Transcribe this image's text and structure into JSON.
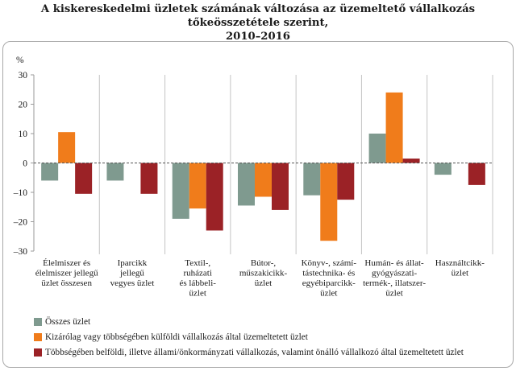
{
  "chart_data": {
    "type": "bar",
    "title": "A kiskereskedelmi üzletek számának változása az üzemeltető vállalkozás tőkeösszetétele szerint, 2010–2016",
    "title_lines": [
      "A kiskereskedelmi üzletek számának változása az üzemeltető vállalkozás tőkeösszetétele szerint,",
      "2010–2016"
    ],
    "ylabel": "%",
    "ylim": [
      -30,
      30
    ],
    "yticks": [
      30,
      20,
      10,
      0,
      -10,
      -20,
      -30
    ],
    "grid": false,
    "legend_position": "bottom",
    "categories": [
      [
        "Élelmiszer és",
        "élelmiszer jellegű",
        "üzlet összesen"
      ],
      [
        "Iparcikk",
        "jellegű",
        "vegyes üzlet"
      ],
      [
        "Textil-,",
        "ruházati",
        "és lábbeli-",
        "üzlet"
      ],
      [
        "Bútor-,",
        "műszakicikk-",
        "üzlet"
      ],
      [
        "Könyv-, számí-",
        "tástechnika- és",
        "egyébiparcikk-",
        "üzlet"
      ],
      [
        "Humán- és állat-",
        "gyógyászati-",
        "termék-, illatszer-",
        "üzlet"
      ],
      [
        "Használtcikk-",
        "üzlet"
      ]
    ],
    "series": [
      {
        "name": "Összes üzlet",
        "color": "#7f9a8f",
        "values": [
          -6,
          -6,
          -19,
          -14.5,
          -11,
          10,
          -4
        ]
      },
      {
        "name": "Kizárólag vagy többségében külföldi vállalkozás által üzemeltetett üzlet",
        "color": "#f07c1b",
        "values": [
          10.5,
          null,
          -15.5,
          -11.5,
          -26.5,
          24,
          null
        ]
      },
      {
        "name": "Többségében belföldi, illetve állami/önkormányzati vállalkozás, valamint önálló vállalkozó által üzemeltetett üzlet",
        "color": "#9b2226",
        "values": [
          -10.5,
          -10.5,
          -23,
          -16,
          -12.5,
          1.5,
          -7.5
        ]
      }
    ]
  }
}
